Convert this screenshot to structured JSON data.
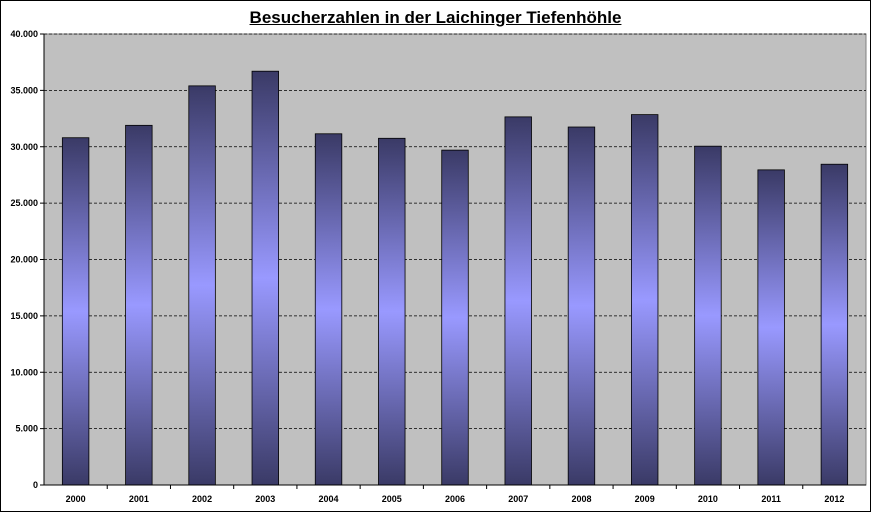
{
  "chart_data": {
    "type": "bar",
    "title": "Besucherzahlen in der Laichinger Tiefenhöhle",
    "xlabel": "",
    "ylabel": "",
    "categories": [
      "2000",
      "2001",
      "2002",
      "2003",
      "2004",
      "2005",
      "2006",
      "2007",
      "2008",
      "2009",
      "2010",
      "2011",
      "2012"
    ],
    "values": [
      30800,
      31900,
      35400,
      36700,
      31150,
      30750,
      29700,
      32650,
      31750,
      32850,
      30050,
      27950,
      28450
    ],
    "ylim": [
      0,
      40000
    ],
    "yticks": [
      0,
      5000,
      10000,
      15000,
      20000,
      25000,
      30000,
      35000,
      40000
    ],
    "ytick_labels": [
      "0",
      "5.000",
      "10.000",
      "15.000",
      "20.000",
      "25.000",
      "30.000",
      "35.000",
      "40.000"
    ],
    "grid": true,
    "legend": "none",
    "colors": {
      "plot_background": "#c0c0c0",
      "bar_edge": "#3a3a66",
      "bar_center": "#9999ff",
      "grid": "#000000"
    }
  }
}
